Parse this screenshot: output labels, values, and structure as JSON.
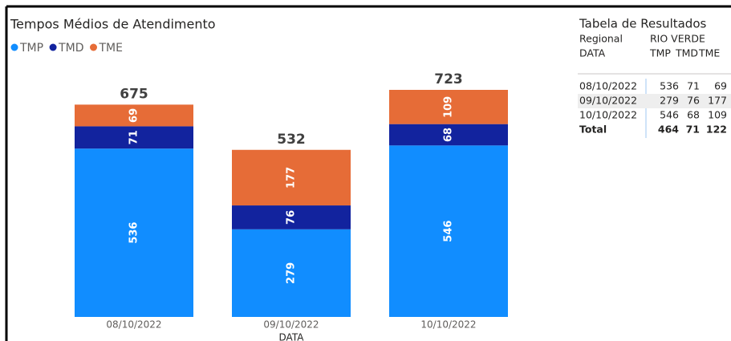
{
  "chart_data": {
    "type": "stacked_bar",
    "title": "Tempos Médios de Atendimento",
    "categories": [
      "08/10/2022",
      "09/10/2022",
      "10/10/2022"
    ],
    "x_label": "DATA",
    "series": [
      {
        "name": "TMP",
        "color": "#118dff",
        "values": [
          536,
          279,
          546
        ]
      },
      {
        "name": "TMD",
        "color": "#12239e",
        "values": [
          71,
          76,
          68
        ]
      },
      {
        "name": "TME",
        "color": "#e66c37",
        "values": [
          69,
          177,
          109
        ]
      }
    ],
    "totals": [
      675,
      532,
      723
    ]
  },
  "table": {
    "title": "Tabela de Resultados",
    "header": [
      [
        "Regional",
        "RIO VERDE"
      ],
      [
        "DATA",
        "TMP",
        "TMD",
        "TME"
      ]
    ],
    "rows": [
      [
        "08/10/2022",
        536,
        71,
        69
      ],
      [
        "09/10/2022",
        279,
        76,
        177
      ],
      [
        "10/10/2022",
        546,
        68,
        109
      ],
      [
        "Total",
        464,
        71,
        122
      ]
    ]
  }
}
